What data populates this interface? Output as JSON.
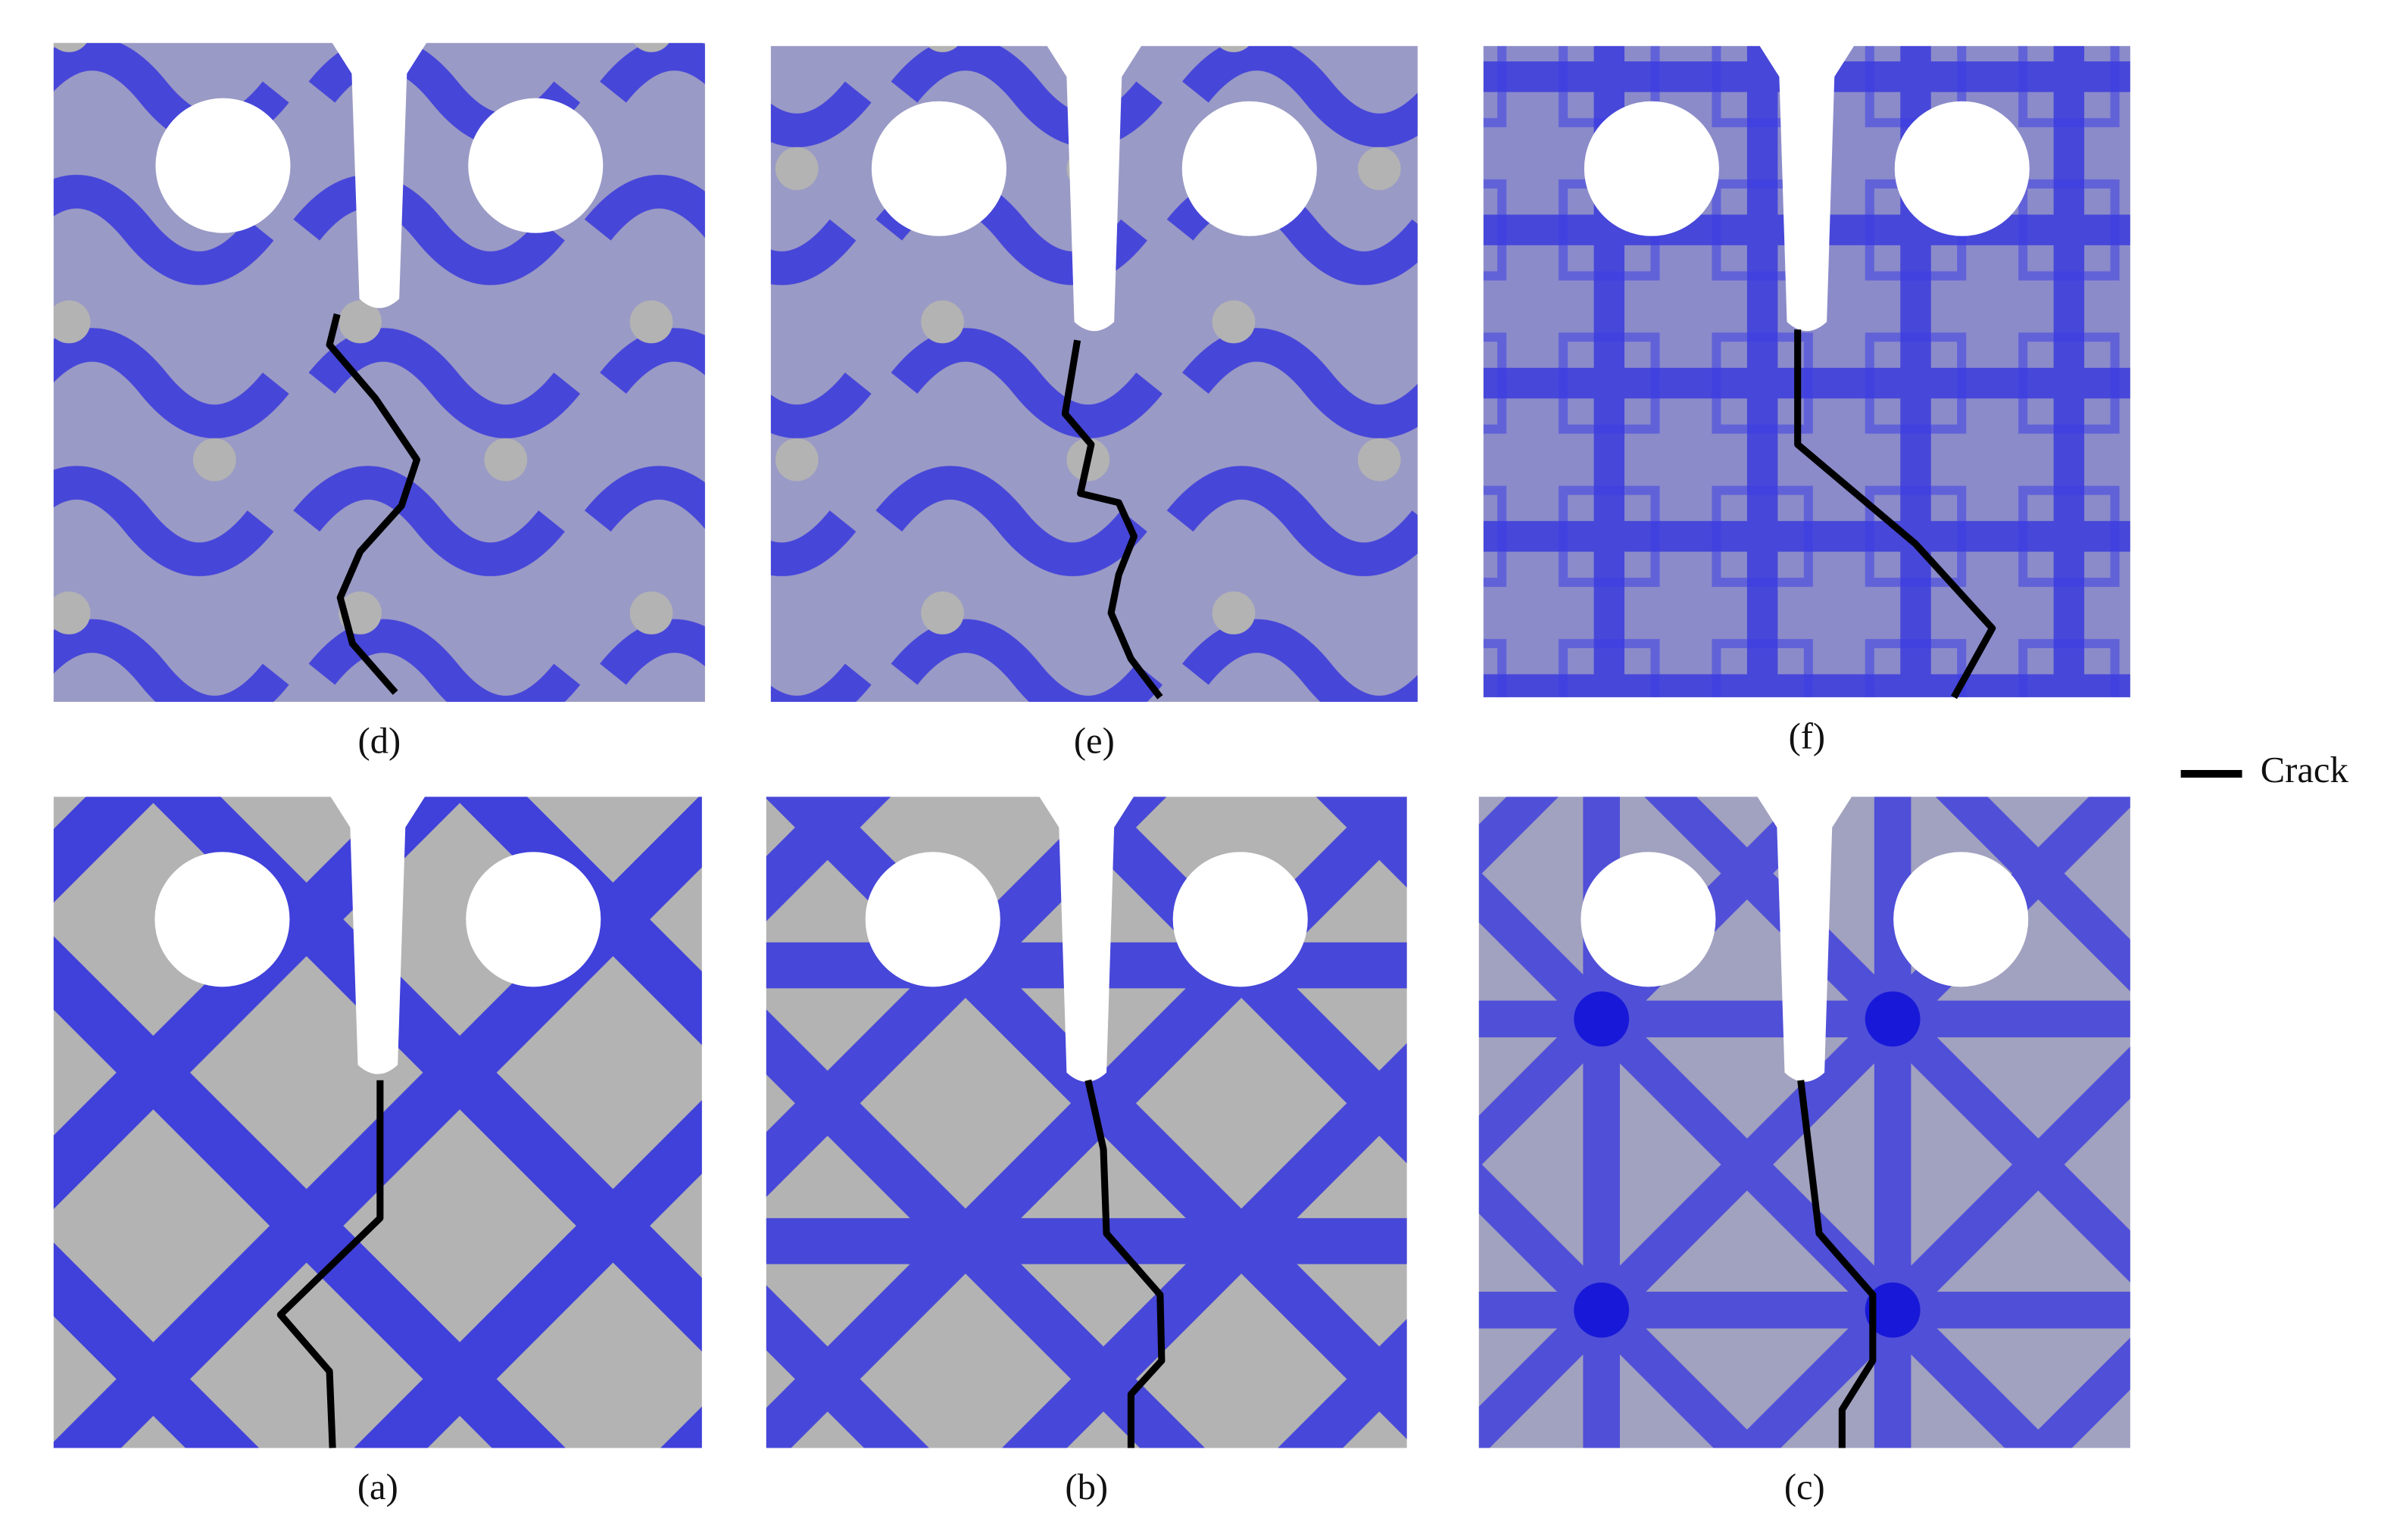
{
  "panels": [
    {
      "label": "(d)"
    },
    {
      "label": "(e)"
    },
    {
      "label": "(f)"
    },
    {
      "label": "(a)"
    },
    {
      "label": "(b)"
    },
    {
      "label": "(c)"
    }
  ],
  "legend": {
    "label": "Crack"
  }
}
